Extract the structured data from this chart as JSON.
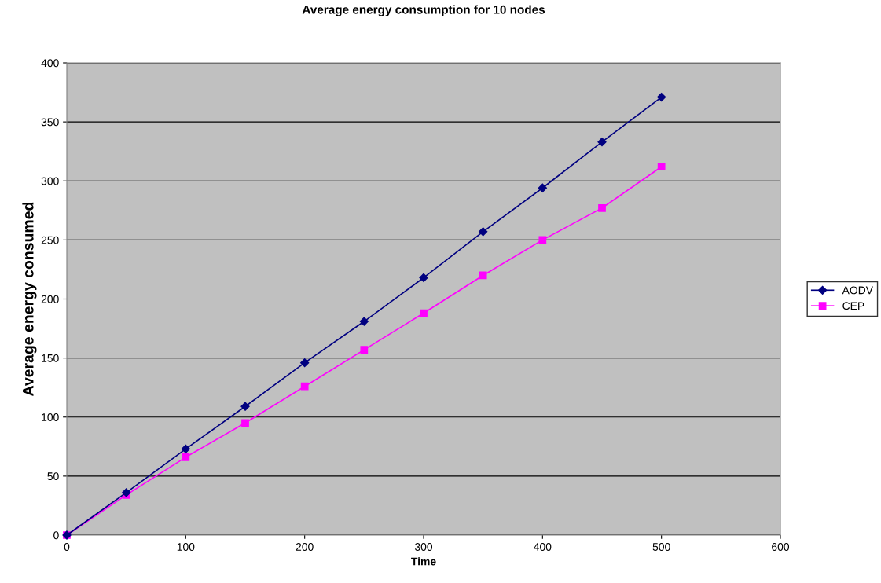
{
  "chart_data": {
    "type": "line",
    "title": "Average energy consumption for 10 nodes",
    "xlabel": "Time",
    "ylabel": "Average energy consumed",
    "x": [
      0,
      50,
      100,
      150,
      200,
      250,
      300,
      350,
      400,
      450,
      500
    ],
    "series": [
      {
        "name": "AODV",
        "color": "#000080",
        "marker": "diamond",
        "values": [
          0,
          36,
          73,
          109,
          146,
          181,
          218,
          257,
          294,
          333,
          371
        ]
      },
      {
        "name": "CEP",
        "color": "#ff00ff",
        "marker": "square",
        "values": [
          0,
          34,
          66,
          95,
          126,
          157,
          188,
          220,
          250,
          277,
          312
        ]
      }
    ],
    "xlim": [
      0,
      600
    ],
    "xticks": [
      0,
      100,
      200,
      300,
      400,
      500,
      600
    ],
    "ylim": [
      0,
      400
    ],
    "yticks": [
      0,
      50,
      100,
      150,
      200,
      250,
      300,
      350,
      400
    ],
    "grid": "y",
    "legend": "right",
    "line_style": "solid"
  }
}
